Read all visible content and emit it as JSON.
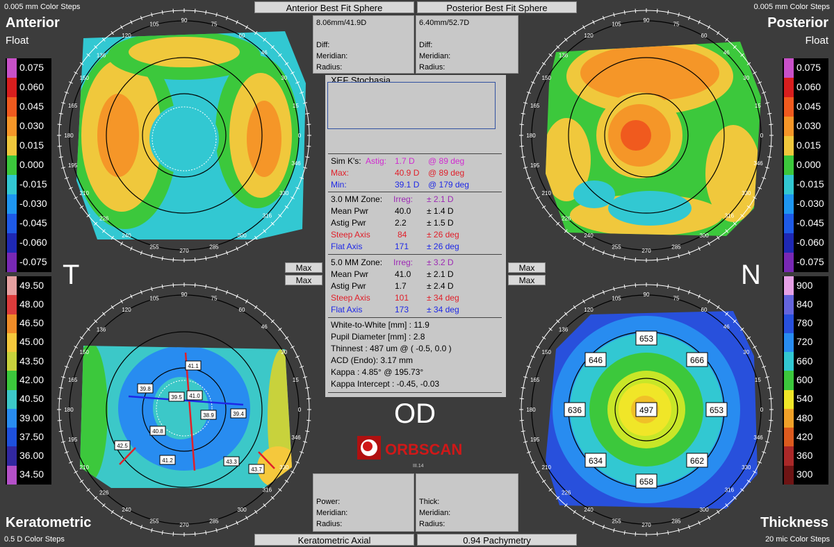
{
  "header": {
    "anterior_btn": "Anterior Best Fit Sphere",
    "posterior_btn": "Posterior Best Fit Sphere",
    "left_steps": "0.005 mm Color Steps",
    "right_steps": "0.005 mm Color Steps"
  },
  "footer": {
    "kerat_btn": "Keratometric Axial",
    "pachy_btn": "0.94 Pachymetry",
    "left_steps": "0.5 D Color Steps",
    "right_steps": "20 mic Color Steps"
  },
  "anterior": {
    "title": "Anterior",
    "subtitle": "Float"
  },
  "posterior": {
    "title": "Posterior",
    "subtitle": "Float"
  },
  "keratometric": {
    "title": "Keratometric"
  },
  "thickness": {
    "title": "Thickness"
  },
  "side_labels": {
    "left": "T",
    "right": "N"
  },
  "float_scale": [
    "0.075",
    "0.060",
    "0.045",
    "0.030",
    "0.015",
    "0.000",
    "-0.015",
    "-0.030",
    "-0.045",
    "-0.060",
    "-0.075"
  ],
  "float_colors": [
    "#c850c8",
    "#d81e1e",
    "#f05a1e",
    "#f59628",
    "#f0c83c",
    "#3cc83c",
    "#32c8d2",
    "#1e96f0",
    "#1e5ae6",
    "#1e28b4",
    "#7828b4"
  ],
  "kerat_scale": [
    "49.50",
    "48.00",
    "46.50",
    "45.00",
    "43.50",
    "42.00",
    "40.50",
    "39.00",
    "37.50",
    "36.00",
    "34.50"
  ],
  "kerat_colors": [
    "#e6a0a0",
    "#dc3c3c",
    "#f08c28",
    "#f5c83c",
    "#c8d23c",
    "#3cc83c",
    "#3cc8c8",
    "#288cf0",
    "#1e50dc",
    "#3228a0",
    "#b450c8"
  ],
  "thick_scale": [
    "900",
    "840",
    "780",
    "720",
    "660",
    "600",
    "540",
    "480",
    "420",
    "360",
    "300"
  ],
  "thick_colors": [
    "#e6a0e6",
    "#6464dc",
    "#2850dc",
    "#288cf0",
    "#32c8d2",
    "#3cc83c",
    "#f0e628",
    "#f0a028",
    "#dc5a1e",
    "#aa2828",
    "#6e1414"
  ],
  "anterior_bfs": {
    "value": "8.06mm/41.9D",
    "diff": "Diff:",
    "meridian": "Meridian:",
    "radius": "Radius:"
  },
  "posterior_bfs": {
    "value": "6.40mm/52.7D",
    "diff": "Diff:",
    "meridian": "Meridian:",
    "radius": "Radius:"
  },
  "bottom_left_box": {
    "power": "Power:",
    "meridian": "Meridian:",
    "radius": "Radius:"
  },
  "bottom_right_box": {
    "thick": "Thick:",
    "meridian": "Meridian:",
    "radius": "Radius:"
  },
  "max_buttons": [
    "Max",
    "Max",
    "Max",
    "Max"
  ],
  "center": {
    "partial_title": "XEF Stochasia",
    "simk_label": "Sim K's:",
    "astig_label": "Astig:",
    "astig_val": "1.7 D",
    "astig_deg": "@ 89 deg",
    "max_label": "Max:",
    "max_val": "40.9 D",
    "max_deg": "@ 89 deg",
    "min_label": "Min:",
    "min_val": "39.1 D",
    "min_deg": "@ 179 deg",
    "zone3": {
      "label": "3.0 MM Zone:",
      "irreg": "Irreg:",
      "irreg_val": "± 2.1 D",
      "mean_l": "Mean Pwr",
      "mean_v": "40.0",
      "mean_d": "± 1.4 D",
      "astig_l": "Astig Pwr",
      "astig_v": "2.2",
      "astig_d": "± 1.5 D",
      "steep_l": "Steep Axis",
      "steep_v": "84",
      "steep_d": "± 26 deg",
      "flat_l": "Flat Axis",
      "flat_v": "171",
      "flat_d": "± 26 deg"
    },
    "zone5": {
      "label": "5.0 MM Zone:",
      "irreg": "Irreg:",
      "irreg_val": "± 3.2 D",
      "mean_l": "Mean Pwr",
      "mean_v": "41.0",
      "mean_d": "± 2.1 D",
      "astig_l": "Astig Pwr",
      "astig_v": "1.7",
      "astig_d": "± 2.4 D",
      "steep_l": "Steep Axis",
      "steep_v": "101",
      "steep_d": "± 34 deg",
      "flat_l": "Flat Axis",
      "flat_v": "173",
      "flat_d": "± 34 deg"
    },
    "wtw": "White-to-White [mm] : 11.9",
    "pupil": "Pupil Diameter [mm] :  2.8",
    "thinnest": "Thinnest : 487 um @ ( -0.5, 0.0 )",
    "acd": "ACD (Endo): 3.17 mm",
    "kappa": "Kappa : 4.85° @ 195.73°",
    "kappa_int": "Kappa Intercept : -0.45, -0.03"
  },
  "eye": "OD",
  "logo": {
    "text": "ORBSCAN",
    "version": "III.14"
  },
  "colors": {
    "red": "#e0202a",
    "blue": "#1e28e6",
    "purple": "#9c28b4",
    "magenta": "#d02ad0"
  },
  "axis_labels": [
    "90",
    "105",
    "120",
    "136",
    "150",
    "165",
    "180",
    "195",
    "210",
    "226",
    "240",
    "255",
    "270",
    "285",
    "300",
    "316",
    "330",
    "346",
    "0",
    "15",
    "30",
    "46",
    "60",
    "75"
  ],
  "keratometric_values": [
    "41.1",
    "39.8",
    "39.5",
    "41.0",
    "38.9",
    "39.4",
    "40.8",
    "42.5",
    "41.2",
    "43.3",
    "43.7"
  ],
  "pachymetry_values": [
    "653",
    "646",
    "666",
    "636",
    "497",
    "653",
    "634",
    "662",
    "658"
  ]
}
